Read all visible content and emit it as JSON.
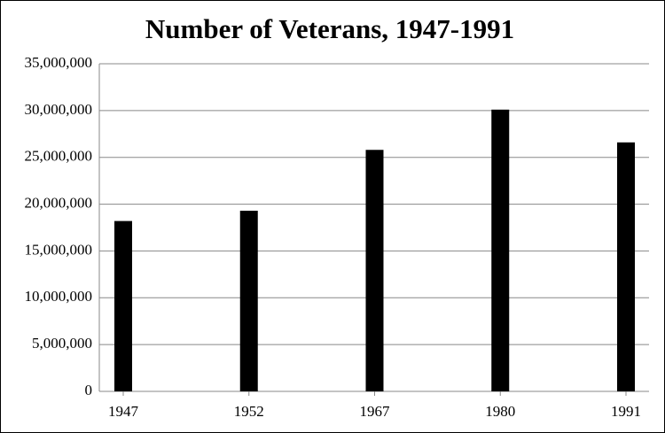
{
  "chart_data": {
    "type": "bar",
    "title": "Number of Veterans, 1947-1991",
    "categories": [
      "1947",
      "1952",
      "1967",
      "1980",
      "1991"
    ],
    "values": [
      18200000,
      19300000,
      25800000,
      30100000,
      26600000
    ],
    "color": "#000000",
    "ylim": [
      0,
      35000000
    ],
    "yticks": [
      {
        "value": 0,
        "label": "0"
      },
      {
        "value": 5000000,
        "label": "5,000,000"
      },
      {
        "value": 10000000,
        "label": "10,000,000"
      },
      {
        "value": 15000000,
        "label": "15,000,000"
      },
      {
        "value": 20000000,
        "label": "20,000,000"
      },
      {
        "value": 25000000,
        "label": "25,000,000"
      },
      {
        "value": 30000000,
        "label": "30,000,000"
      },
      {
        "value": 35000000,
        "label": "35,000,000"
      }
    ],
    "grid": true
  }
}
